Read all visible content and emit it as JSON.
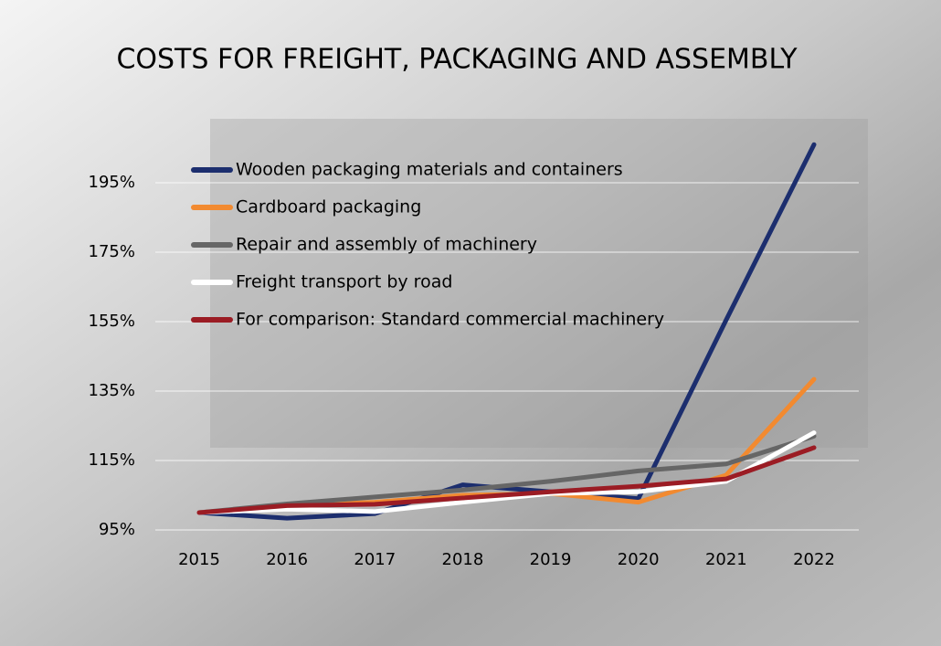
{
  "chart_data": {
    "type": "line",
    "title": "COSTS FOR FREIGHT, PACKAGING AND ASSEMBLY",
    "categories": [
      "2015",
      "2016",
      "2017",
      "2018",
      "2019",
      "2020",
      "2021",
      "2022"
    ],
    "series": [
      {
        "name": "Wooden packaging materials and containers",
        "color": "#1c2e6e",
        "values": [
          100,
          98.4,
          99.7,
          108,
          106,
          104,
          155.5,
          206
        ]
      },
      {
        "name": "Cardboard packaging",
        "color": "#f28a30",
        "values": [
          100,
          102,
          103,
          105,
          105.5,
          103,
          110.8,
          138.4
        ]
      },
      {
        "name": "Repair and assembly of machinery",
        "color": "#666666",
        "values": [
          100,
          102.5,
          104.5,
          106.5,
          109,
          112,
          114,
          122
        ]
      },
      {
        "name": "Freight transport by road",
        "color": "#ffffff",
        "values": [
          100,
          101,
          100.3,
          103,
          105.5,
          106,
          109,
          123
        ]
      },
      {
        "name": "For comparison: Standard commercial machinery",
        "color": "#9b1c24",
        "values": [
          100,
          102,
          102.4,
          104.2,
          106,
          107.6,
          109.7,
          118.7
        ]
      }
    ],
    "ylim": [
      95,
      210
    ],
    "yticks": [
      {
        "value": 95,
        "label": "95%"
      },
      {
        "value": 115,
        "label": "115%"
      },
      {
        "value": 135,
        "label": "135%"
      },
      {
        "value": 155,
        "label": "155%"
      },
      {
        "value": 175,
        "label": "175%"
      },
      {
        "value": 195,
        "label": "195%"
      }
    ],
    "grid": true,
    "legend": "upper-left"
  }
}
